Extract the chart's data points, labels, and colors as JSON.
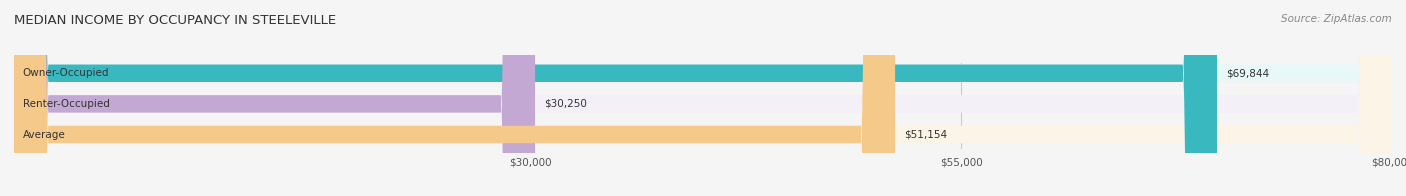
{
  "title": "MEDIAN INCOME BY OCCUPANCY IN STEELEVILLE",
  "source": "Source: ZipAtlas.com",
  "categories": [
    "Owner-Occupied",
    "Renter-Occupied",
    "Average"
  ],
  "values": [
    69844,
    30250,
    51154
  ],
  "labels": [
    "$69,844",
    "$30,250",
    "$51,154"
  ],
  "bar_colors": [
    "#3ab8c0",
    "#c4a8d4",
    "#f5c98a"
  ],
  "bar_bg_colors": [
    "#e8f8f8",
    "#f3f0f8",
    "#fdf4e8"
  ],
  "xlim": [
    0,
    80000
  ],
  "xticks": [
    30000,
    55000,
    80000
  ],
  "xtick_labels": [
    "$30,000",
    "$55,000",
    "$80,000"
  ],
  "figsize": [
    14.06,
    1.96
  ],
  "dpi": 100
}
